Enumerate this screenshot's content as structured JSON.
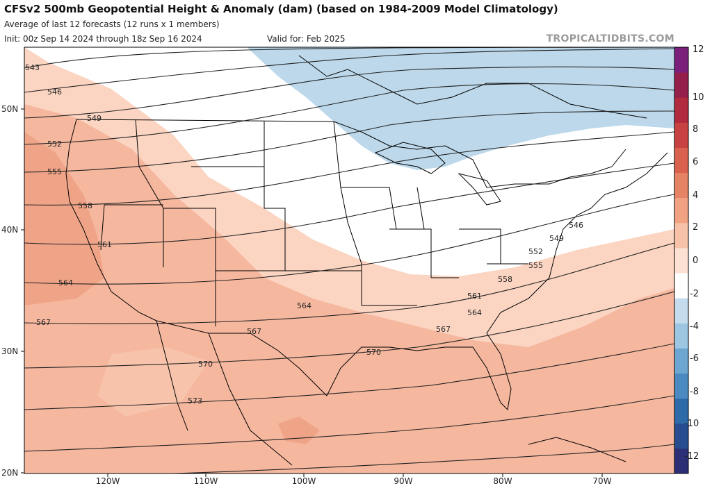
{
  "header": {
    "title": "CFSv2 500mb Geopotential Height & Anomaly (dam) (based on 1984-2009 Model Climatology)",
    "subtitle": "Average of last 12 forecasts (12 runs x 1 members)",
    "init": "Init: 00z Sep 14 2024 through 18z Sep 16 2024",
    "valid": "Valid for: Feb 2025",
    "brand": "TROPICALTIDBITS.COM"
  },
  "map": {
    "lat_labels": [
      "50N",
      "40N",
      "30N",
      "20N"
    ],
    "lon_labels": [
      "120W",
      "110W",
      "100W",
      "90W",
      "80W",
      "70W"
    ],
    "contour_labels": [
      "543",
      "546",
      "549",
      "552",
      "555",
      "558",
      "561",
      "564",
      "567",
      "570",
      "573",
      "546",
      "549",
      "552",
      "555",
      "558",
      "561",
      "564",
      "564",
      "567",
      "567",
      "570",
      "570"
    ]
  },
  "colorbar": {
    "labels": [
      "12",
      "10",
      "8",
      "6",
      "4",
      "2",
      "0",
      "-2",
      "-4",
      "-6",
      "-8",
      "-10",
      "-12"
    ],
    "colors": [
      "#2c2f75",
      "#274c8f",
      "#2f6aa8",
      "#4a8ac0",
      "#6ea6d2",
      "#9cc6e2",
      "#c4dced",
      "#ffffff",
      "#fde2d4",
      "#f7c2a7",
      "#f0a283",
      "#e58364",
      "#d9614d",
      "#c84241",
      "#b12a3d",
      "#941f4a",
      "#7a1f7a"
    ]
  }
}
